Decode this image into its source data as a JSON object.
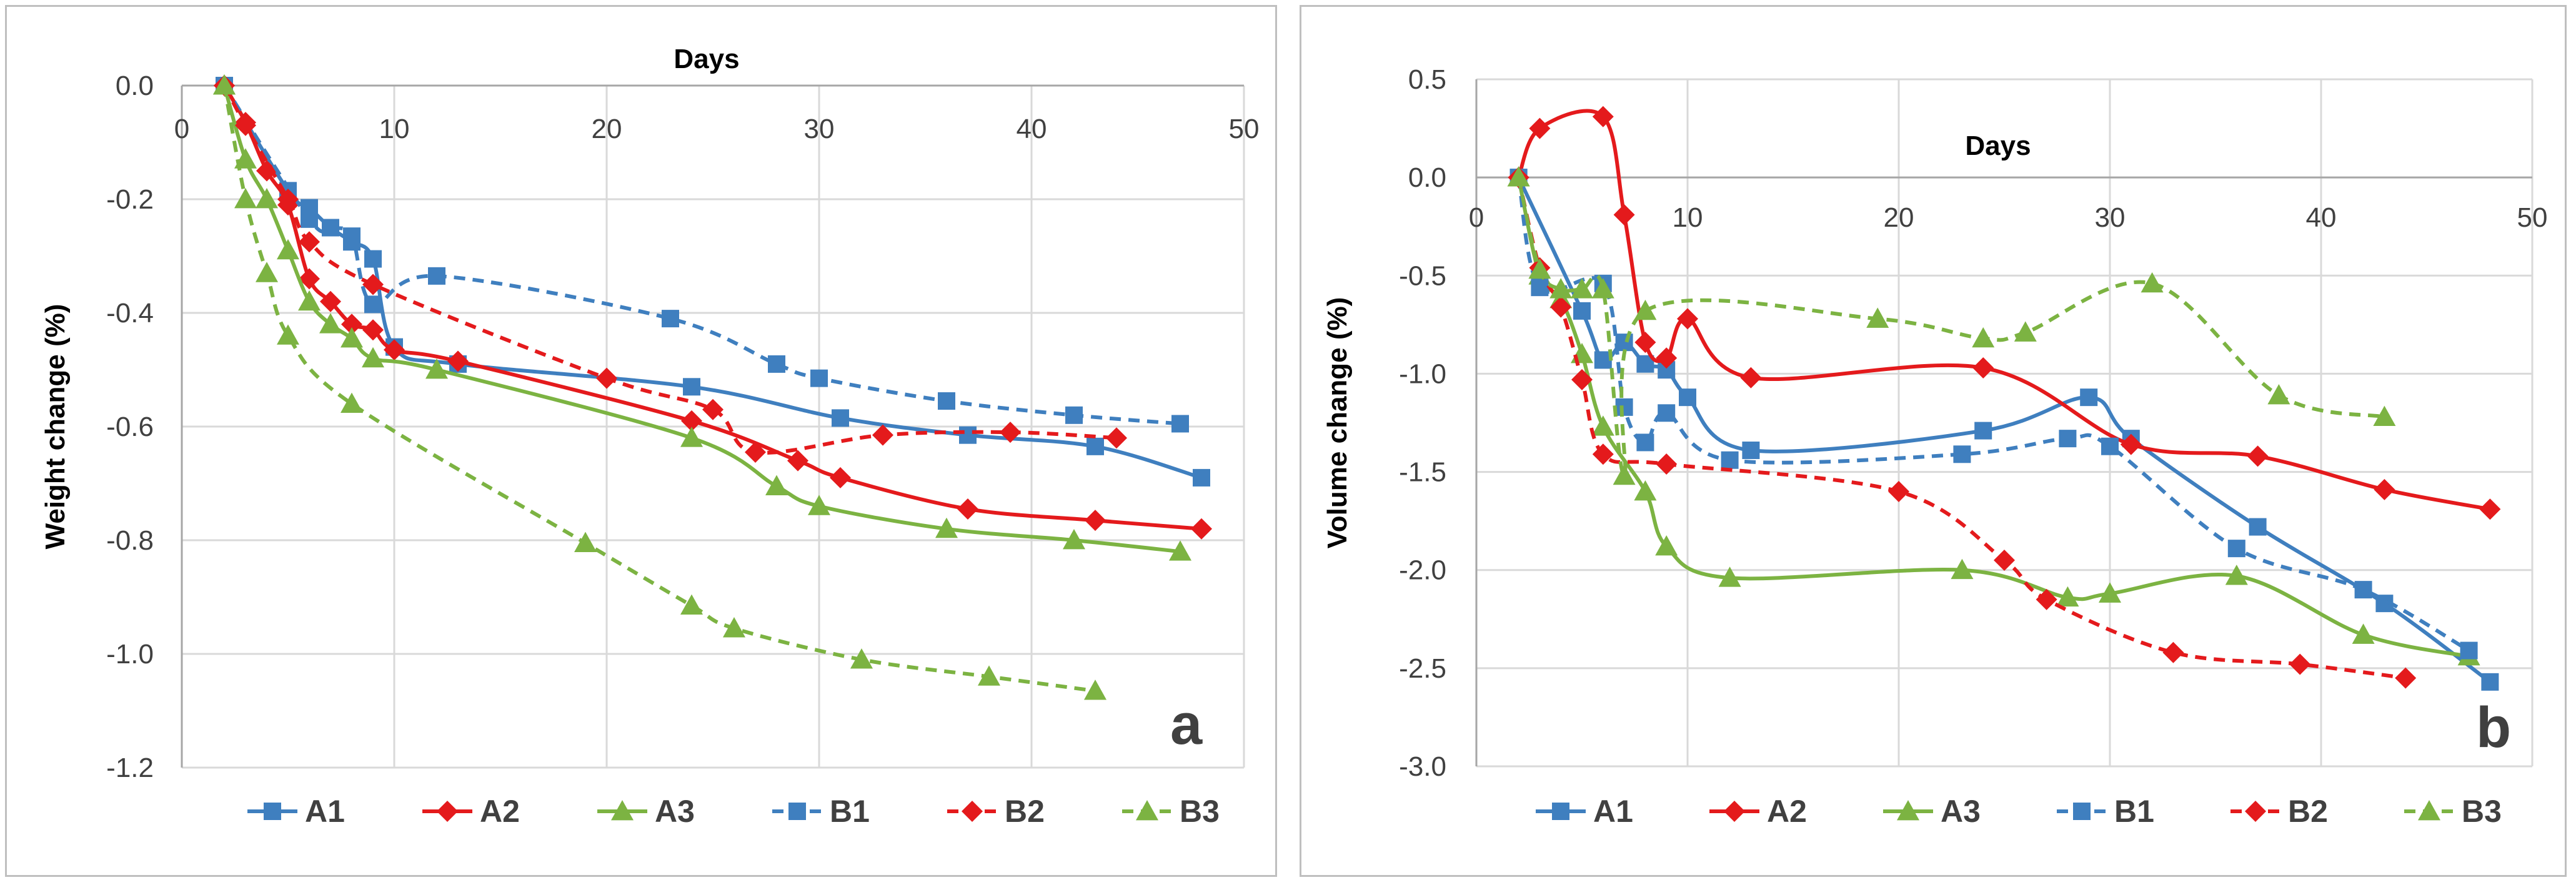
{
  "chart_data": [
    {
      "type": "line",
      "panel_label": "a",
      "xlabel": "Days",
      "ylabel": "Weight change (%)",
      "xlim": [
        0,
        50
      ],
      "ylim": [
        -1.2,
        0.0
      ],
      "x_ticks": [
        "0",
        "10",
        "20",
        "30",
        "40",
        "50"
      ],
      "y_ticks": [
        "0.0",
        "-0.2",
        "-0.4",
        "-0.6",
        "-0.8",
        "-1.0",
        "-1.2"
      ],
      "legend_position": "bottom",
      "series": [
        {
          "name": "A1",
          "color": "#3f7fbf",
          "marker": "square",
          "dashed": false,
          "points": [
            [
              2,
              0
            ],
            [
              5,
              -0.185
            ],
            [
              6,
              -0.215
            ],
            [
              7,
              -0.25
            ],
            [
              8,
              -0.275
            ],
            [
              9,
              -0.305
            ],
            [
              10,
              -0.46
            ],
            [
              13,
              -0.49
            ],
            [
              24,
              -0.53
            ],
            [
              31,
              -0.585
            ],
            [
              37,
              -0.615
            ],
            [
              43,
              -0.635
            ],
            [
              48,
              -0.69
            ]
          ]
        },
        {
          "name": "A2",
          "color": "#e41a1c",
          "marker": "diamond",
          "dashed": false,
          "points": [
            [
              2,
              0
            ],
            [
              3,
              -0.065
            ],
            [
              4,
              -0.15
            ],
            [
              5,
              -0.21
            ],
            [
              6,
              -0.34
            ],
            [
              7,
              -0.38
            ],
            [
              8,
              -0.42
            ],
            [
              9,
              -0.43
            ],
            [
              10,
              -0.465
            ],
            [
              13,
              -0.485
            ],
            [
              24,
              -0.59
            ],
            [
              29,
              -0.66
            ],
            [
              31,
              -0.69
            ],
            [
              37,
              -0.745
            ],
            [
              43,
              -0.765
            ],
            [
              48,
              -0.78
            ]
          ]
        },
        {
          "name": "A3",
          "color": "#7cb342",
          "marker": "triangle",
          "dashed": false,
          "points": [
            [
              2,
              0
            ],
            [
              3,
              -0.13
            ],
            [
              4,
              -0.2
            ],
            [
              5,
              -0.29
            ],
            [
              6,
              -0.38
            ],
            [
              7,
              -0.42
            ],
            [
              8,
              -0.445
            ],
            [
              9,
              -0.48
            ],
            [
              12,
              -0.5
            ],
            [
              24,
              -0.62
            ],
            [
              28,
              -0.705
            ],
            [
              30,
              -0.74
            ],
            [
              36,
              -0.78
            ],
            [
              42,
              -0.8
            ],
            [
              47,
              -0.82
            ]
          ]
        },
        {
          "name": "B1",
          "color": "#3f7fbf",
          "marker": "square",
          "dashed": true,
          "points": [
            [
              2,
              0
            ],
            [
              6,
              -0.235
            ],
            [
              7,
              -0.25
            ],
            [
              8,
              -0.265
            ],
            [
              9,
              -0.385
            ],
            [
              12,
              -0.335
            ],
            [
              23,
              -0.41
            ],
            [
              28,
              -0.49
            ],
            [
              30,
              -0.515
            ],
            [
              36,
              -0.555
            ],
            [
              42,
              -0.58
            ],
            [
              47,
              -0.595
            ]
          ]
        },
        {
          "name": "B2",
          "color": "#e41a1c",
          "marker": "diamond",
          "dashed": true,
          "points": [
            [
              2,
              0
            ],
            [
              3,
              -0.07
            ],
            [
              5,
              -0.2
            ],
            [
              6,
              -0.275
            ],
            [
              9,
              -0.35
            ],
            [
              20,
              -0.515
            ],
            [
              25,
              -0.57
            ],
            [
              27,
              -0.645
            ],
            [
              33,
              -0.615
            ],
            [
              39,
              -0.61
            ],
            [
              44,
              -0.62
            ]
          ]
        },
        {
          "name": "B3",
          "color": "#7cb342",
          "marker": "triangle",
          "dashed": true,
          "points": [
            [
              2,
              0
            ],
            [
              3,
              -0.2
            ],
            [
              4,
              -0.33
            ],
            [
              5,
              -0.44
            ],
            [
              8,
              -0.56
            ],
            [
              19,
              -0.805
            ],
            [
              24,
              -0.915
            ],
            [
              26,
              -0.955
            ],
            [
              32,
              -1.01
            ],
            [
              38,
              -1.04
            ],
            [
              43,
              -1.065
            ]
          ]
        }
      ]
    },
    {
      "type": "line",
      "panel_label": "b",
      "xlabel": "Days",
      "ylabel": "Volume change (%)",
      "xlim": [
        0,
        50
      ],
      "ylim": [
        -3.0,
        0.5
      ],
      "x_ticks": [
        "0",
        "10",
        "20",
        "30",
        "40",
        "50"
      ],
      "y_ticks": [
        "0.5",
        "0.0",
        "-0.5",
        "-1.0",
        "-1.5",
        "-2.0",
        "-2.5",
        "-3.0"
      ],
      "legend_position": "bottom",
      "series": [
        {
          "name": "A1",
          "color": "#3f7fbf",
          "marker": "square",
          "dashed": false,
          "points": [
            [
              2,
              0
            ],
            [
              5,
              -0.68
            ],
            [
              6,
              -0.93
            ],
            [
              7,
              -0.84
            ],
            [
              8,
              -0.95
            ],
            [
              9,
              -0.98
            ],
            [
              10,
              -1.12
            ],
            [
              13,
              -1.39
            ],
            [
              24,
              -1.29
            ],
            [
              29,
              -1.12
            ],
            [
              31,
              -1.33
            ],
            [
              37,
              -1.78
            ],
            [
              43,
              -2.17
            ],
            [
              48,
              -2.57
            ]
          ]
        },
        {
          "name": "A2",
          "color": "#e41a1c",
          "marker": "diamond",
          "dashed": false,
          "points": [
            [
              2,
              0
            ],
            [
              3,
              0.25
            ],
            [
              6,
              0.31
            ],
            [
              7,
              -0.19
            ],
            [
              8,
              -0.84
            ],
            [
              9,
              -0.92
            ],
            [
              10,
              -0.72
            ],
            [
              13,
              -1.02
            ],
            [
              24,
              -0.97
            ],
            [
              31,
              -1.36
            ],
            [
              37,
              -1.42
            ],
            [
              43,
              -1.59
            ],
            [
              48,
              -1.69
            ]
          ]
        },
        {
          "name": "A3",
          "color": "#7cb342",
          "marker": "triangle",
          "dashed": false,
          "points": [
            [
              2,
              0
            ],
            [
              3,
              -0.5
            ],
            [
              4,
              -0.62
            ],
            [
              5,
              -0.9
            ],
            [
              6,
              -1.27
            ],
            [
              8,
              -1.6
            ],
            [
              9,
              -1.88
            ],
            [
              12,
              -2.04
            ],
            [
              23,
              -2.0
            ],
            [
              28,
              -2.14
            ],
            [
              30,
              -2.12
            ],
            [
              36,
              -2.03
            ],
            [
              42,
              -2.33
            ],
            [
              47,
              -2.44
            ]
          ]
        },
        {
          "name": "B1",
          "color": "#3f7fbf",
          "marker": "square",
          "dashed": true,
          "points": [
            [
              2,
              0
            ],
            [
              3,
              -0.56
            ],
            [
              6,
              -0.54
            ],
            [
              7,
              -1.17
            ],
            [
              8,
              -1.35
            ],
            [
              9,
              -1.2
            ],
            [
              12,
              -1.44
            ],
            [
              23,
              -1.41
            ],
            [
              28,
              -1.33
            ],
            [
              30,
              -1.37
            ],
            [
              36,
              -1.89
            ],
            [
              42,
              -2.1
            ],
            [
              47,
              -2.41
            ]
          ]
        },
        {
          "name": "B2",
          "color": "#e41a1c",
          "marker": "diamond",
          "dashed": true,
          "points": [
            [
              2,
              0
            ],
            [
              3,
              -0.46
            ],
            [
              4,
              -0.66
            ],
            [
              5,
              -1.03
            ],
            [
              6,
              -1.41
            ],
            [
              9,
              -1.46
            ],
            [
              20,
              -1.6
            ],
            [
              25,
              -1.95
            ],
            [
              27,
              -2.15
            ],
            [
              33,
              -2.42
            ],
            [
              39,
              -2.48
            ],
            [
              44,
              -2.55
            ]
          ]
        },
        {
          "name": "B3",
          "color": "#7cb342",
          "marker": "triangle",
          "dashed": true,
          "points": [
            [
              2,
              0
            ],
            [
              3,
              -0.47
            ],
            [
              4,
              -0.57
            ],
            [
              5,
              -0.57
            ],
            [
              6,
              -0.57
            ],
            [
              7,
              -1.52
            ],
            [
              8,
              -0.68
            ],
            [
              19,
              -0.72
            ],
            [
              24,
              -0.82
            ],
            [
              26,
              -0.79
            ],
            [
              32,
              -0.54
            ],
            [
              38,
              -1.11
            ],
            [
              43,
              -1.22
            ]
          ]
        }
      ]
    }
  ]
}
